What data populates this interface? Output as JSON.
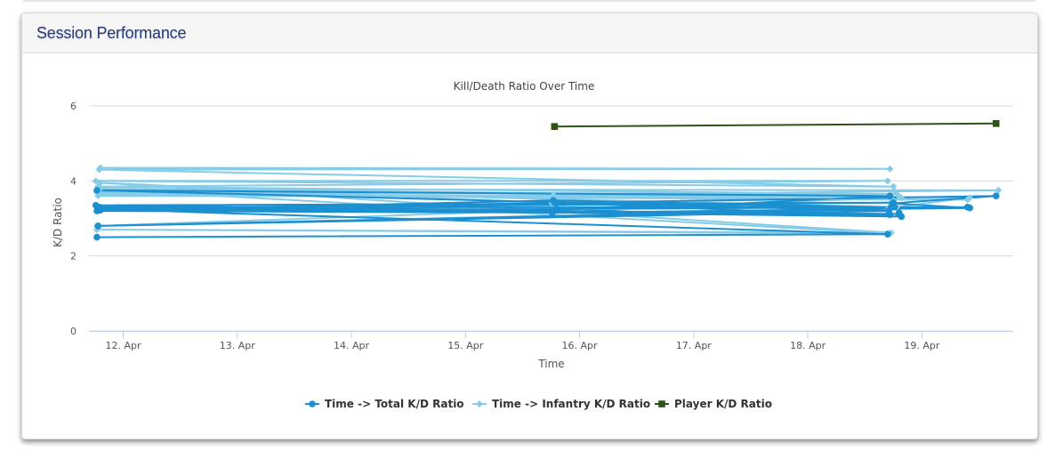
{
  "panel": {
    "title": "Session Performance"
  },
  "chart_data": {
    "type": "line",
    "title": "Kill/Death Ratio Over Time",
    "xlabel": "Time",
    "ylabel": "K/D Ratio",
    "xlim": [
      11.7,
      19.8
    ],
    "ylim": [
      0,
      6
    ],
    "yticks": [
      0,
      2,
      4,
      6
    ],
    "xticks": [
      {
        "value": 12,
        "label": "12. Apr"
      },
      {
        "value": 13,
        "label": "13. Apr"
      },
      {
        "value": 14,
        "label": "14. Apr"
      },
      {
        "value": 15,
        "label": "15. Apr"
      },
      {
        "value": 16,
        "label": "16. Apr"
      },
      {
        "value": 17,
        "label": "17. Apr"
      },
      {
        "value": 18,
        "label": "18. Apr"
      },
      {
        "value": 19,
        "label": "19. Apr"
      }
    ],
    "grid": true,
    "legend_position": "bottom",
    "series": [
      {
        "name": "Time -> Total K/D Ratio",
        "color": "#1b8fd0",
        "marker": "circle",
        "points": [
          [
            11.77,
            2.5
          ],
          [
            18.7,
            2.58
          ],
          [
            11.78,
            3.25
          ],
          [
            18.72,
            3.1
          ],
          [
            11.76,
            3.35
          ],
          [
            18.75,
            3.42
          ],
          [
            11.8,
            3.28
          ],
          [
            18.8,
            3.12
          ],
          [
            11.77,
            3.2
          ],
          [
            15.77,
            3.48
          ],
          [
            18.73,
            3.3
          ],
          [
            15.78,
            3.42
          ],
          [
            18.82,
            3.05
          ],
          [
            11.79,
            3.3
          ],
          [
            19.4,
            3.3
          ],
          [
            11.78,
            2.8
          ],
          [
            18.71,
            3.2
          ],
          [
            11.77,
            3.75
          ],
          [
            18.72,
            3.6
          ],
          [
            15.76,
            3.15
          ],
          [
            19.42,
            3.28
          ],
          [
            18.74,
            3.4
          ],
          [
            19.65,
            3.6
          ],
          [
            11.8,
            3.22
          ],
          [
            15.8,
            3.25
          ],
          [
            18.76,
            3.3
          ],
          [
            18.8,
            3.15
          ]
        ]
      },
      {
        "name": "Time -> Infantry K/D Ratio",
        "color": "#86cbe7",
        "marker": "diamond",
        "points": [
          [
            11.8,
            4.35
          ],
          [
            18.72,
            4.32
          ],
          [
            11.79,
            4.3
          ],
          [
            18.75,
            3.85
          ],
          [
            11.76,
            4.0
          ],
          [
            18.7,
            4.0
          ],
          [
            11.78,
            3.85
          ],
          [
            18.78,
            3.65
          ],
          [
            11.77,
            3.7
          ],
          [
            15.78,
            3.55
          ],
          [
            18.74,
            3.5
          ],
          [
            19.4,
            3.5
          ],
          [
            11.79,
            3.65
          ],
          [
            18.8,
            3.58
          ],
          [
            11.78,
            3.6
          ],
          [
            15.77,
            3.62
          ],
          [
            18.76,
            3.72
          ],
          [
            19.67,
            3.75
          ],
          [
            11.78,
            3.78
          ],
          [
            18.7,
            2.6
          ],
          [
            11.77,
            2.7
          ],
          [
            18.73,
            2.62
          ],
          [
            11.8,
            3.95
          ],
          [
            15.76,
            3.4
          ],
          [
            18.82,
            3.55
          ],
          [
            11.77,
            2.8
          ],
          [
            18.71,
            3.28
          ],
          [
            19.42,
            3.55
          ],
          [
            11.8,
            3.8
          ],
          [
            18.78,
            3.3
          ]
        ]
      },
      {
        "name": "Player K/D Ratio",
        "color": "#2e5317",
        "marker": "square",
        "points": [
          [
            15.78,
            5.45
          ],
          [
            19.65,
            5.53
          ]
        ]
      }
    ]
  }
}
